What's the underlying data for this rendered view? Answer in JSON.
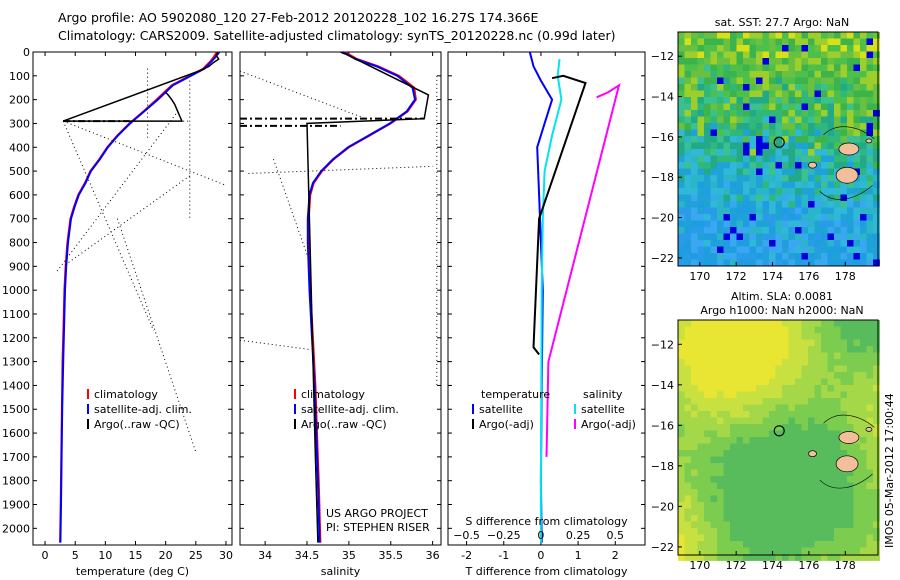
{
  "header": {
    "line1": "Argo profile: AO 5902080_120 27-Feb-2012 20120228_102 16.27S 174.366E",
    "line2": "Climatology: CARS2009. Satellite-adjusted climatology: synTS_20120228.nc (0.99d later)"
  },
  "side_text": "IMOS 05-Mar-2012 17:00:44",
  "colors": {
    "climatology": "#ff0000",
    "satellite": "#0000ff",
    "argo": "#000000",
    "satellite_s": "#00e5ee",
    "argo_s": "#ff00ff",
    "land": "#f2bf9a"
  },
  "chart_data": [
    {
      "type": "line",
      "name": "temperature",
      "xlabel": "temperature (deg C)",
      "ylabel": "",
      "xlim": [
        -2,
        31
      ],
      "ylim": [
        2070,
        0
      ],
      "xticks": [
        0,
        5,
        10,
        15,
        20,
        25,
        30
      ],
      "yticks": [
        0,
        100,
        200,
        300,
        400,
        500,
        600,
        700,
        800,
        900,
        1000,
        1100,
        1200,
        1300,
        1400,
        1500,
        1600,
        1700,
        1800,
        1900,
        2000
      ],
      "legend": [
        "climatology",
        "satellite-adj. clim.",
        "Argo(..raw -QC)"
      ],
      "series": [
        {
          "name": "climatology",
          "x": [
            28.5,
            28,
            27.4,
            26.2,
            24,
            21,
            18.5,
            16.3,
            14,
            12,
            10.3,
            9,
            7.5,
            6.6,
            5.5,
            4.8,
            4.2,
            3.7,
            3.4,
            3.2,
            3,
            2.9,
            2.8,
            2.7,
            2.6,
            2.5
          ],
          "y": [
            0,
            20,
            40,
            70,
            100,
            140,
            200,
            250,
            300,
            350,
            400,
            450,
            500,
            550,
            600,
            650,
            700,
            800,
            900,
            1000,
            1200,
            1300,
            1500,
            1700,
            1900,
            2060
          ]
        },
        {
          "name": "satellite-adj. clim.",
          "x": [
            28.9,
            28.3,
            27.6,
            26.4,
            24.2,
            21.2,
            18.7,
            16.4,
            14.1,
            12.1,
            10.4,
            9.1,
            7.6,
            6.7,
            5.6,
            4.9,
            4.3,
            3.8,
            3.5,
            3.3,
            3.1,
            3,
            2.85,
            2.75,
            2.65,
            2.55
          ],
          "y": [
            0,
            20,
            40,
            70,
            100,
            140,
            200,
            250,
            300,
            350,
            400,
            450,
            500,
            550,
            600,
            650,
            700,
            800,
            900,
            1000,
            1200,
            1300,
            1500,
            1700,
            1900,
            2060
          ]
        },
        {
          "name": "Argo(..raw -QC)",
          "x": [
            28.6,
            28.4,
            28.8,
            27.9,
            27.2,
            26,
            3,
            22.7,
            21.5,
            21,
            20.4,
            20
          ],
          "y": [
            0,
            15,
            30,
            45,
            60,
            75,
            290,
            290,
            220,
            200,
            180,
            170
          ]
        }
      ]
    },
    {
      "type": "line",
      "name": "salinity",
      "xlabel": "salinity",
      "ylabel": "",
      "xlim": [
        33.7,
        36.1
      ],
      "ylim": [
        2070,
        0
      ],
      "xticks": [
        34,
        34.5,
        35,
        35.5,
        36
      ],
      "xtick_labels": [
        "34",
        "34.5",
        "35",
        "35.5",
        "36"
      ],
      "legend": [
        "climatology",
        "satellite-adj. clim.",
        "Argo(..raw -QC)"
      ],
      "annotation": [
        "US ARGO PROJECT",
        "PI: STEPHEN RISER"
      ],
      "series": [
        {
          "name": "climatology",
          "x": [
            34.95,
            35.1,
            35.35,
            35.6,
            35.78,
            35.8,
            35.7,
            35.5,
            35.25,
            35.0,
            34.82,
            34.68,
            34.58,
            34.54,
            34.52,
            34.52,
            34.54,
            34.57,
            34.6,
            34.62,
            34.64,
            34.66
          ],
          "y": [
            0,
            30,
            60,
            100,
            150,
            200,
            250,
            300,
            350,
            400,
            450,
            500,
            550,
            600,
            700,
            800,
            1000,
            1200,
            1400,
            1600,
            1800,
            2060
          ]
        },
        {
          "name": "satellite-adj. clim.",
          "x": [
            34.93,
            35.08,
            35.33,
            35.58,
            35.76,
            35.79,
            35.69,
            35.49,
            35.24,
            34.99,
            34.81,
            34.67,
            34.57,
            34.53,
            34.51,
            34.51,
            34.53,
            34.56,
            34.59,
            34.61,
            34.63,
            34.65
          ],
          "y": [
            0,
            30,
            60,
            100,
            150,
            200,
            250,
            300,
            350,
            400,
            450,
            500,
            550,
            600,
            700,
            800,
            1000,
            1200,
            1400,
            1600,
            1800,
            2060
          ]
        },
        {
          "name": "Argo(..raw -QC)",
          "x": [
            34.9,
            34.93,
            34.97,
            35.95,
            35.9,
            34.5,
            34.6,
            34.63
          ],
          "y": [
            0,
            5,
            10,
            180,
            280,
            300,
            1700,
            2060
          ]
        }
      ]
    },
    {
      "type": "line",
      "name": "difference",
      "xlabel": "T difference from climatology",
      "xlabel_top": "S difference from climatology",
      "xlim": [
        -2.5,
        2.8
      ],
      "ylim": [
        2070,
        0
      ],
      "xticks": [
        -2,
        -1,
        0,
        1,
        2
      ],
      "top_ticks": [
        -0.5,
        -0.25,
        0,
        0.25,
        0.5
      ],
      "top_tick_labels": [
        "−0.5",
        "−0.25",
        "0",
        "0.25",
        "0.5"
      ],
      "legend_headers": [
        "temperature",
        "salinity"
      ],
      "legend": [
        "satellite",
        "Argo(-adj)",
        "satellite",
        "Argo(-adj)"
      ],
      "series": [
        {
          "name": "temperature satellite",
          "x": [
            -0.3,
            -0.2,
            0,
            0.3,
            0.1,
            -0.1,
            -0.05,
            0,
            0.05,
            0.02,
            0,
            0.02
          ],
          "y": [
            0,
            60,
            120,
            200,
            300,
            400,
            600,
            800,
            1000,
            1400,
            1800,
            2060
          ]
        },
        {
          "name": "salinity satellite",
          "x": [
            0.5,
            0.45,
            0.55,
            0.3,
            0.1,
            0.05,
            0.02,
            0.01,
            0.0,
            0.0
          ],
          "y": [
            30,
            100,
            200,
            350,
            500,
            700,
            1000,
            1400,
            1800,
            2060
          ]
        },
        {
          "name": "temperature Argo(-adj)",
          "x": [
            0.3,
            0.6,
            1.2,
            -0.05,
            -0.2,
            -0.05
          ],
          "y": [
            110,
            100,
            130,
            700,
            1240,
            1270
          ]
        },
        {
          "name": "salinity Argo(-adj)",
          "x": [
            1.5,
            1.8,
            2.1,
            0.2,
            0.15
          ],
          "y": [
            190,
            170,
            140,
            1300,
            1700
          ]
        }
      ]
    },
    {
      "type": "heatmap",
      "name": "sst map",
      "title": "sat. SST: 27.7  Argo: NaN",
      "xlim": [
        168.8,
        179.8
      ],
      "ylim": [
        -22.4,
        -10.8
      ],
      "xticks": [
        170,
        172,
        174,
        176,
        178
      ],
      "yticks": [
        -12,
        -14,
        -16,
        -18,
        -20,
        -22
      ],
      "marker": {
        "lon": 174.366,
        "lat": -16.27
      }
    },
    {
      "type": "heatmap",
      "name": "sla map",
      "title": [
        "Altim. SLA: 0.0081",
        "Argo h1000: NaN  h2000: NaN"
      ],
      "xlim": [
        168.8,
        179.8
      ],
      "ylim": [
        -22.4,
        -10.8
      ],
      "xticks": [
        170,
        172,
        174,
        176,
        178
      ],
      "yticks": [
        -12,
        -14,
        -16,
        -18,
        -20,
        -22
      ],
      "marker": {
        "lon": 174.366,
        "lat": -16.27
      }
    }
  ]
}
